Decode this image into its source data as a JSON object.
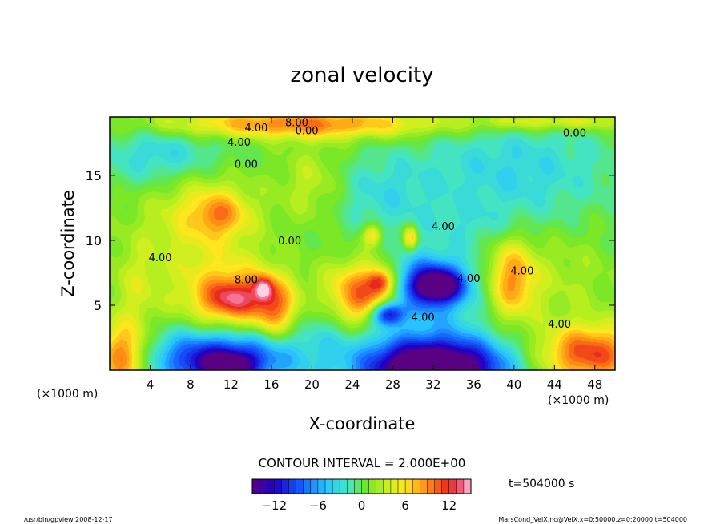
{
  "chart_data": {
    "type": "heatmap",
    "title": "zonal velocity",
    "xlabel": "X-coordinate",
    "ylabel": "Z-coordinate",
    "x_unit": "(×1000 m)",
    "z_unit": "(×1000 m)",
    "xlim": [
      0,
      50
    ],
    "ylim": [
      0,
      19.5
    ],
    "x_ticks": [
      4,
      8,
      12,
      16,
      20,
      24,
      28,
      32,
      36,
      40,
      44,
      48
    ],
    "y_ticks": [
      5,
      10,
      15
    ],
    "contour_interval_text": "CONTOUR INTERVAL = 2.000E+00",
    "time_text": "t=504000 s",
    "colorbar": {
      "range": [
        -15,
        15
      ],
      "ticks": [
        -12,
        -6,
        0,
        6,
        12
      ],
      "tick_labels": [
        "−12",
        "−6",
        "0",
        "6",
        "12"
      ]
    },
    "contour_labels": [
      {
        "text": "8.00",
        "x": 18.5,
        "z": 19.0
      },
      {
        "text": "4.00",
        "x": 14.5,
        "z": 18.6
      },
      {
        "text": "0.00",
        "x": 19.5,
        "z": 18.4
      },
      {
        "text": "4.00",
        "x": 12.8,
        "z": 17.5
      },
      {
        "text": "0.00",
        "x": 13.5,
        "z": 15.8
      },
      {
        "text": "0.00",
        "x": 17.8,
        "z": 9.9
      },
      {
        "text": "4.00",
        "x": 33.0,
        "z": 11.0
      },
      {
        "text": "4.00",
        "x": 5.0,
        "z": 8.6
      },
      {
        "text": "8.00",
        "x": 13.5,
        "z": 6.9
      },
      {
        "text": "4.00",
        "x": 35.5,
        "z": 7.0
      },
      {
        "text": "4.00",
        "x": 31.0,
        "z": 4.0
      },
      {
        "text": "4.00",
        "x": 40.8,
        "z": 7.6
      },
      {
        "text": "4.00",
        "x": 44.5,
        "z": 3.5
      },
      {
        "text": "0.00",
        "x": 46.0,
        "z": 18.2
      }
    ],
    "features": [
      {
        "x": 9.0,
        "z": 12.0,
        "rx": 5.5,
        "rz": 4.8,
        "v": 5
      },
      {
        "x": 11.0,
        "z": 12.0,
        "rx": 2.6,
        "rz": 1.6,
        "v": 5
      },
      {
        "x": 12.5,
        "z": 5.5,
        "rx": 5.0,
        "rz": 2.6,
        "v": 9
      },
      {
        "x": 12.0,
        "z": 5.5,
        "rx": 2.5,
        "rz": 1.2,
        "v": 4
      },
      {
        "x": 16.5,
        "z": 4.6,
        "rx": 2.0,
        "rz": 2.2,
        "v": 6
      },
      {
        "x": 15.2,
        "z": 6.3,
        "rx": 0.9,
        "rz": 0.9,
        "v": 8
      },
      {
        "x": 25.5,
        "z": 6.2,
        "rx": 4.0,
        "rz": 2.2,
        "v": 10
      },
      {
        "x": 26.8,
        "z": 6.8,
        "rx": 1.2,
        "rz": 0.9,
        "v": 8
      },
      {
        "x": 25.0,
        "z": 4.5,
        "rx": 3.0,
        "rz": 1.6,
        "v": 3
      },
      {
        "x": 31.5,
        "z": 6.5,
        "rx": 4.2,
        "rz": 2.2,
        "v": -14
      },
      {
        "x": 32.5,
        "z": 6.5,
        "rx": 2.0,
        "rz": 1.0,
        "v": -10
      },
      {
        "x": 27.5,
        "z": 4.3,
        "rx": 1.6,
        "rz": 0.9,
        "v": -14
      },
      {
        "x": 32.0,
        "z": 0.4,
        "rx": 7.5,
        "rz": 2.6,
        "v": -16
      },
      {
        "x": 32.0,
        "z": 0.0,
        "rx": 4.5,
        "rz": 1.3,
        "v": -10
      },
      {
        "x": 11.0,
        "z": 0.9,
        "rx": 7.0,
        "rz": 2.2,
        "v": -13
      },
      {
        "x": 11.5,
        "z": 0.4,
        "rx": 2.5,
        "rz": 0.8,
        "v": -10
      },
      {
        "x": 1.2,
        "z": 1.0,
        "rx": 2.6,
        "rz": 2.6,
        "v": 10
      },
      {
        "x": 47.5,
        "z": 1.2,
        "rx": 5.0,
        "rz": 2.2,
        "v": 11
      },
      {
        "x": 39.8,
        "z": 7.0,
        "rx": 2.4,
        "rz": 3.2,
        "v": 8
      },
      {
        "x": 19.0,
        "z": 19.0,
        "rx": 14.0,
        "rz": 1.1,
        "v": 9
      },
      {
        "x": 44.0,
        "z": 19.2,
        "rx": 8.0,
        "rz": 0.7,
        "v": 5
      },
      {
        "x": 6.0,
        "z": 16.5,
        "rx": 6.5,
        "rz": 2.5,
        "v": -5
      },
      {
        "x": 40.0,
        "z": 15.5,
        "rx": 10.0,
        "rz": 4.0,
        "v": -4
      },
      {
        "x": 27.0,
        "z": 13.5,
        "rx": 5.0,
        "rz": 3.0,
        "v": -3
      },
      {
        "x": 20.0,
        "z": 14.5,
        "rx": 3.0,
        "rz": 3.0,
        "v": 3
      },
      {
        "x": 26.0,
        "z": 10.4,
        "rx": 0.9,
        "rz": 0.8,
        "v": 7
      },
      {
        "x": 29.8,
        "z": 10.2,
        "rx": 0.6,
        "rz": 0.9,
        "v": 9
      },
      {
        "x": 2.5,
        "z": 6.5,
        "rx": 2.5,
        "rz": 3.5,
        "v": 3
      },
      {
        "x": 45.0,
        "z": 7.0,
        "rx": 5.0,
        "rz": 4.0,
        "v": 2
      },
      {
        "x": 36.0,
        "z": 11.0,
        "rx": 6.0,
        "rz": 2.0,
        "v": -2
      },
      {
        "x": 21.0,
        "z": 3.5,
        "rx": 3.0,
        "rz": 3.0,
        "v": -2
      }
    ]
  },
  "footer": {
    "left_text": "/usr/bin/gpview 2008-12-17",
    "right_text": "MarsCond_VelX.nc@VelX,x=0:50000,z=0:20000,t=504000"
  }
}
